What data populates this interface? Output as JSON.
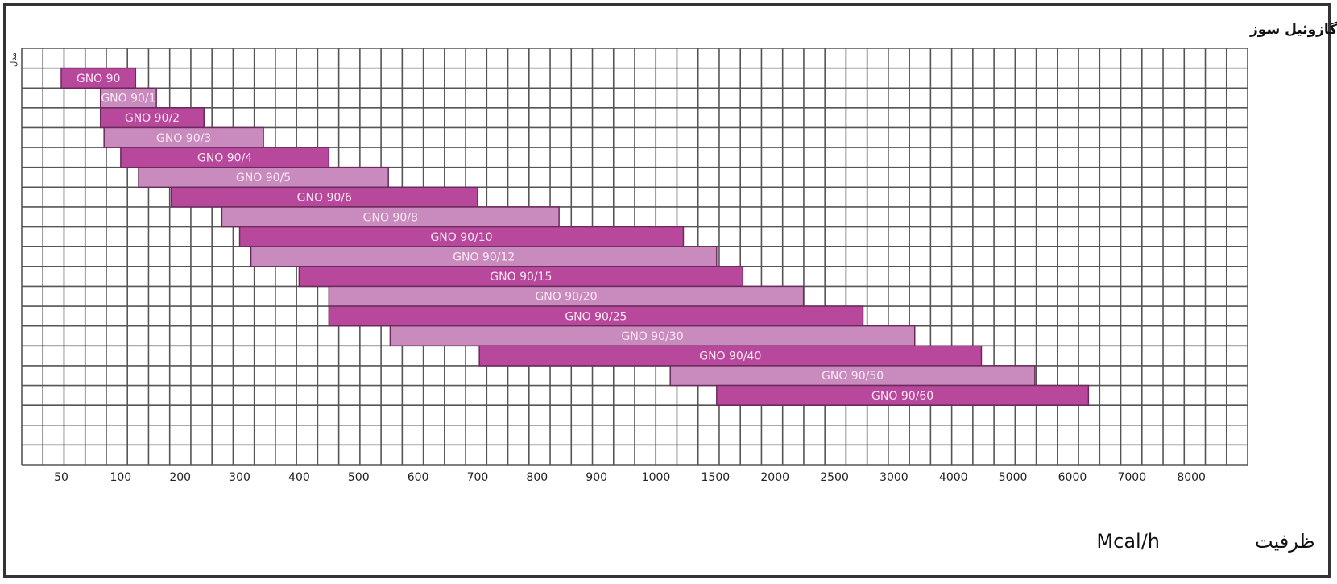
{
  "chart_data": {
    "type": "bar",
    "orientation": "horizontal-range",
    "title": "مشعل های گازوئیل سوز",
    "ylabel": "مدل",
    "xlabel_text": "ظرفیت",
    "xlabel_unit": "Mcal/h",
    "x_ticks": [
      50,
      100,
      200,
      300,
      400,
      500,
      600,
      700,
      800,
      900,
      1000,
      1500,
      2000,
      2500,
      3000,
      4000,
      5000,
      6000,
      7000,
      8000
    ],
    "x_scale": "non-uniform (tick labels evenly spaced)",
    "grid": true,
    "colors": {
      "dark": "#b8489b",
      "light": "#c98bbd",
      "edge": "#6b2a5c",
      "grid": "#555555"
    },
    "series": [
      {
        "label": "GNO 90",
        "min": 50,
        "max": 125,
        "shade": "dark"
      },
      {
        "label": "GNO 90/1",
        "min": 83,
        "max": 160,
        "shade": "light"
      },
      {
        "label": "GNO 90/2",
        "min": 83,
        "max": 240,
        "shade": "dark"
      },
      {
        "label": "GNO 90/3",
        "min": 86,
        "max": 340,
        "shade": "light"
      },
      {
        "label": "GNO 90/4",
        "min": 100,
        "max": 450,
        "shade": "dark"
      },
      {
        "label": "GNO 90/5",
        "min": 130,
        "max": 550,
        "shade": "light"
      },
      {
        "label": "GNO 90/6",
        "min": 185,
        "max": 700,
        "shade": "dark"
      },
      {
        "label": "GNO 90/8",
        "min": 270,
        "max": 837,
        "shade": "light"
      },
      {
        "label": "GNO 90/10",
        "min": 300,
        "max": 1230,
        "shade": "dark"
      },
      {
        "label": "GNO 90/12",
        "min": 319,
        "max": 1510,
        "shade": "light"
      },
      {
        "label": "GNO 90/15",
        "min": 400,
        "max": 1730,
        "shade": "dark"
      },
      {
        "label": "GNO 90/20",
        "min": 450,
        "max": 2240,
        "shade": "light"
      },
      {
        "label": "GNO 90/25",
        "min": 450,
        "max": 2740,
        "shade": "dark"
      },
      {
        "label": "GNO 90/30",
        "min": 553,
        "max": 3350,
        "shade": "light"
      },
      {
        "label": "GNO 90/40",
        "min": 703,
        "max": 4470,
        "shade": "dark"
      },
      {
        "label": "GNO 90/50",
        "min": 1120,
        "max": 5370,
        "shade": "light"
      },
      {
        "label": "GNO 90/60",
        "min": 1510,
        "max": 6270,
        "shade": "dark"
      }
    ]
  }
}
